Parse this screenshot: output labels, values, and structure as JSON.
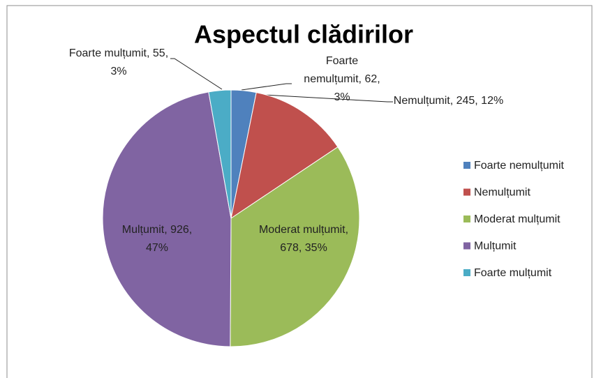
{
  "chart_data": {
    "type": "pie",
    "title": "Aspectul clădirilor",
    "categories": [
      "Foarte nemulțumit",
      "Nemulțumit",
      "Moderat mulțumit",
      "Mulțumit",
      "Foarte mulțumit"
    ],
    "values": [
      62,
      245,
      678,
      926,
      55
    ],
    "value_labels": [
      "Foarte nemulțumit, 62, 3%",
      "Nemulțumit, 245, 12%",
      "Moderat mulțumit, 678, 35%",
      "Mulțumit, 926, 47%",
      "Foarte mulțumit, 55, 3%"
    ],
    "colors": [
      "#4f81bd",
      "#c0504d",
      "#9bbb59",
      "#8064a2",
      "#4bacc6"
    ],
    "legend": "right"
  }
}
